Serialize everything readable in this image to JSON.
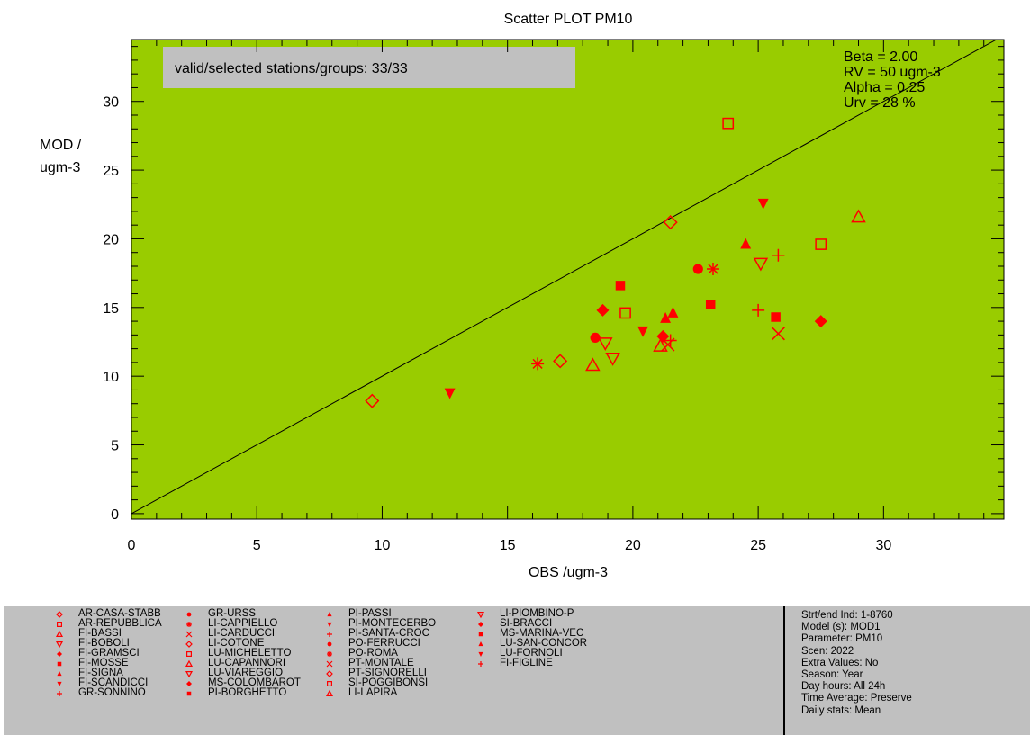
{
  "chart_data": {
    "type": "scatter",
    "title": "Scatter PLOT   PM10",
    "xlabel": "OBS /ugm-3",
    "ylabel_lines": [
      "MOD /",
      "ugm-3"
    ],
    "xlim": [
      0,
      34.8
    ],
    "ylim": [
      -0.4,
      34.5
    ],
    "xticks": [
      0,
      5,
      10,
      15,
      20,
      25,
      30
    ],
    "yticks": [
      0,
      5,
      10,
      15,
      20,
      25,
      30
    ],
    "selection_note": "valid/selected stations/groups: 33/33",
    "parameters": [
      "Beta = 2.00",
      "RV = 50 ugm-3",
      "Alpha = 0.25",
      "Urv = 28 %"
    ],
    "colors": {
      "point": "#ff0000",
      "inner_zone": "#99cc00",
      "outer_zone": "#ffcc00",
      "note_box": "#c0c0c0",
      "legend_bg": "#c0c0c0"
    },
    "points": [
      {
        "station": "AR-CASA-STABB",
        "marker": "diamond-open",
        "x": 21.5,
        "y": 21.2
      },
      {
        "station": "AR-REPUBBLICA",
        "marker": "square-open",
        "x": 23.8,
        "y": 28.4
      },
      {
        "station": "FI-BASSI",
        "marker": "triangle-up-open",
        "x": 29.0,
        "y": 21.6
      },
      {
        "station": "FI-BOBOLI",
        "marker": "triangle-down-open",
        "x": 25.1,
        "y": 18.2
      },
      {
        "station": "FI-GRAMSCI",
        "marker": "diamond-filled",
        "x": 18.8,
        "y": 14.8
      },
      {
        "station": "FI-MOSSE",
        "marker": "square-filled",
        "x": 19.5,
        "y": 16.6
      },
      {
        "station": "FI-SIGNA",
        "marker": "triangle-up-filled",
        "x": 21.3,
        "y": 14.2
      },
      {
        "station": "FI-SCANDICCI",
        "marker": "triangle-down-filled",
        "x": 25.2,
        "y": 22.6
      },
      {
        "station": "GR-SONNINO",
        "marker": "plus",
        "x": 25.0,
        "y": 14.8
      },
      {
        "station": "GR-URSS",
        "marker": "circle-filled",
        "x": 18.5,
        "y": 12.8
      },
      {
        "station": "LI-CAPPIELLO",
        "marker": "asterisk",
        "x": 16.2,
        "y": 10.9
      },
      {
        "station": "LI-CARDUCCI",
        "marker": "x",
        "x": 25.8,
        "y": 13.1
      },
      {
        "station": "LI-COTONE",
        "marker": "diamond-open",
        "x": 9.6,
        "y": 8.2
      },
      {
        "station": "LU-MICHELETTO",
        "marker": "square-open",
        "x": 19.7,
        "y": 14.6
      },
      {
        "station": "LU-CAPANNORI",
        "marker": "triangle-up-open",
        "x": 18.4,
        "y": 10.8
      },
      {
        "station": "LU-VIAREGGIO",
        "marker": "triangle-down-open",
        "x": 19.2,
        "y": 11.3
      },
      {
        "station": "MS-COLOMBAROT",
        "marker": "diamond-filled",
        "x": 27.5,
        "y": 14.0
      },
      {
        "station": "PI-BORGHETTO",
        "marker": "square-filled",
        "x": 23.1,
        "y": 15.2
      },
      {
        "station": "PI-PASSI",
        "marker": "triangle-up-filled",
        "x": 24.5,
        "y": 19.6
      },
      {
        "station": "PI-MONTECERBO",
        "marker": "triangle-down-filled",
        "x": 12.7,
        "y": 8.8
      },
      {
        "station": "PI-SANTA-CROC",
        "marker": "plus",
        "x": 25.8,
        "y": 18.8
      },
      {
        "station": "PO-FERRUCCI",
        "marker": "circle-filled",
        "x": 22.6,
        "y": 17.8
      },
      {
        "station": "PO-ROMA",
        "marker": "asterisk",
        "x": 23.2,
        "y": 17.8
      },
      {
        "station": "PT-MONTALE",
        "marker": "x",
        "x": 21.4,
        "y": 12.3
      },
      {
        "station": "PT-SIGNORELLI",
        "marker": "diamond-open",
        "x": 17.1,
        "y": 11.1
      },
      {
        "station": "SI-POGGIBONSI",
        "marker": "square-open",
        "x": 27.5,
        "y": 19.6
      },
      {
        "station": "LI-LAPIRA",
        "marker": "triangle-up-open",
        "x": 21.1,
        "y": 12.2
      },
      {
        "station": "LI-PIOMBINO-P",
        "marker": "triangle-down-open",
        "x": 18.9,
        "y": 12.4
      },
      {
        "station": "SI-BRACCI",
        "marker": "diamond-filled",
        "x": 21.2,
        "y": 12.9
      },
      {
        "station": "MS-MARINA-VEC",
        "marker": "square-filled",
        "x": 25.7,
        "y": 14.3
      },
      {
        "station": "LU-SAN-CONCOR",
        "marker": "triangle-up-filled",
        "x": 21.6,
        "y": 14.6
      },
      {
        "station": "LU-FORNOLI",
        "marker": "triangle-down-filled",
        "x": 20.4,
        "y": 13.3
      },
      {
        "station": "FI-FIGLINE",
        "marker": "plus",
        "x": 21.5,
        "y": 12.6
      }
    ]
  },
  "legend": {
    "columns": [
      [
        {
          "marker": "diamond-open",
          "label": "AR-CASA-STABB"
        },
        {
          "marker": "square-open",
          "label": "AR-REPUBBLICA"
        },
        {
          "marker": "triangle-up-open",
          "label": "FI-BASSI"
        },
        {
          "marker": "triangle-down-open",
          "label": "FI-BOBOLI"
        },
        {
          "marker": "diamond-filled",
          "label": "FI-GRAMSCI"
        },
        {
          "marker": "square-filled",
          "label": "FI-MOSSE"
        },
        {
          "marker": "triangle-up-filled",
          "label": "FI-SIGNA"
        },
        {
          "marker": "triangle-down-filled",
          "label": "FI-SCANDICCI"
        },
        {
          "marker": "plus",
          "label": "GR-SONNINO"
        }
      ],
      [
        {
          "marker": "circle-filled",
          "label": "GR-URSS"
        },
        {
          "marker": "asterisk",
          "label": "LI-CAPPIELLO"
        },
        {
          "marker": "x",
          "label": "LI-CARDUCCI"
        },
        {
          "marker": "diamond-open",
          "label": "LI-COTONE"
        },
        {
          "marker": "square-open",
          "label": "LU-MICHELETTO"
        },
        {
          "marker": "triangle-up-open",
          "label": "LU-CAPANNORI"
        },
        {
          "marker": "triangle-down-open",
          "label": "LU-VIAREGGIO"
        },
        {
          "marker": "diamond-filled",
          "label": "MS-COLOMBAROT"
        },
        {
          "marker": "square-filled",
          "label": "PI-BORGHETTO"
        }
      ],
      [
        {
          "marker": "triangle-up-filled",
          "label": "PI-PASSI"
        },
        {
          "marker": "triangle-down-filled",
          "label": "PI-MONTECERBO"
        },
        {
          "marker": "plus",
          "label": "PI-SANTA-CROC"
        },
        {
          "marker": "circle-filled",
          "label": "PO-FERRUCCI"
        },
        {
          "marker": "asterisk",
          "label": "PO-ROMA"
        },
        {
          "marker": "x",
          "label": "PT-MONTALE"
        },
        {
          "marker": "diamond-open",
          "label": "PT-SIGNORELLI"
        },
        {
          "marker": "square-open",
          "label": "SI-POGGIBONSI"
        },
        {
          "marker": "triangle-up-open",
          "label": "LI-LAPIRA"
        }
      ],
      [
        {
          "marker": "triangle-down-open",
          "label": "LI-PIOMBINO-P"
        },
        {
          "marker": "diamond-filled",
          "label": "SI-BRACCI"
        },
        {
          "marker": "square-filled",
          "label": "MS-MARINA-VEC"
        },
        {
          "marker": "triangle-up-filled",
          "label": "LU-SAN-CONCOR"
        },
        {
          "marker": "triangle-down-filled",
          "label": "LU-FORNOLI"
        },
        {
          "marker": "plus",
          "label": "FI-FIGLINE"
        }
      ]
    ]
  },
  "info": {
    "lines": [
      "Strt/end Ind: 1-8760",
      "Model (s): MOD1",
      "Parameter: PM10",
      "Scen: 2022",
      "Extra Values: No",
      "Season: Year",
      "Day hours: All 24h",
      "Time Average: Preserve",
      "Daily stats: Mean"
    ]
  }
}
